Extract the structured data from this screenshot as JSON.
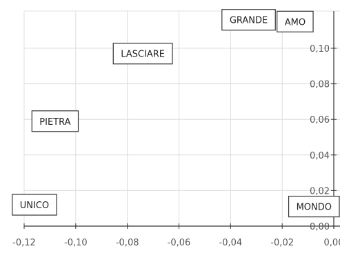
{
  "chart_data": {
    "type": "scatter",
    "title": "",
    "xlabel": "",
    "ylabel": "",
    "xlim": [
      -0.12,
      0.0
    ],
    "ylim": [
      0.0,
      0.11
    ],
    "grid": true,
    "x_ticks": [
      -0.12,
      -0.1,
      -0.08,
      -0.06,
      -0.04,
      -0.02,
      0.0
    ],
    "x_tick_labels": [
      "-0,12",
      "-0,10",
      "-0,08",
      "-0,06",
      "-0,04",
      "-0,02",
      "0,00"
    ],
    "y_ticks": [
      0.0,
      0.02,
      0.04,
      0.06,
      0.08,
      0.1
    ],
    "y_tick_labels": [
      "0,00",
      "0,02",
      "0,04",
      "0,06",
      "0,08",
      "0,10"
    ],
    "points": [
      {
        "label": "GRANDE",
        "x": -0.033,
        "y": 0.116
      },
      {
        "label": "AMO",
        "x": -0.015,
        "y": 0.115
      },
      {
        "label": "LASCIARE",
        "x": -0.074,
        "y": 0.097
      },
      {
        "label": "PIETRA",
        "x": -0.108,
        "y": 0.059
      },
      {
        "label": "UNICO",
        "x": -0.116,
        "y": 0.012
      },
      {
        "label": "MONDO",
        "x": -0.002,
        "y": 0.011
      }
    ]
  }
}
